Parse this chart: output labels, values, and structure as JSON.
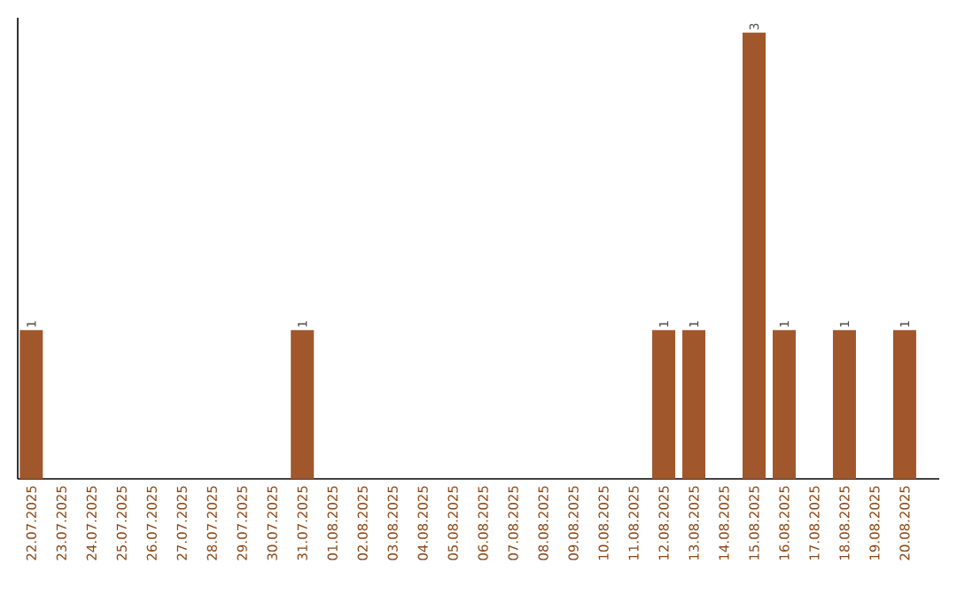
{
  "chart_data": {
    "type": "bar",
    "categories": [
      "22.07.2025",
      "23.07.2025",
      "24.07.2025",
      "25.07.2025",
      "26.07.2025",
      "27.07.2025",
      "28.07.2025",
      "29.07.2025",
      "30.07.2025",
      "31.07.2025",
      "01.08.2025",
      "02.08.2025",
      "03.08.2025",
      "04.08.2025",
      "05.08.2025",
      "06.08.2025",
      "07.08.2025",
      "08.08.2025",
      "09.08.2025",
      "10.08.2025",
      "11.08.2025",
      "12.08.2025",
      "13.08.2025",
      "14.08.2025",
      "15.08.2025",
      "16.08.2025",
      "17.08.2025",
      "18.08.2025",
      "19.08.2025",
      "20.08.2025"
    ],
    "values": [
      1,
      0,
      0,
      0,
      0,
      0,
      0,
      0,
      0,
      1,
      0,
      0,
      0,
      0,
      0,
      0,
      0,
      0,
      0,
      0,
      0,
      1,
      1,
      0,
      3,
      1,
      0,
      1,
      0,
      1
    ],
    "value_labels": [
      "1",
      null,
      null,
      null,
      null,
      null,
      null,
      null,
      null,
      "1",
      null,
      null,
      null,
      null,
      null,
      null,
      null,
      null,
      null,
      null,
      null,
      "1",
      "1",
      null,
      "3",
      "1",
      null,
      "1",
      null,
      "1"
    ],
    "color": "#a0572b",
    "ylim": [
      0,
      3.1
    ]
  }
}
